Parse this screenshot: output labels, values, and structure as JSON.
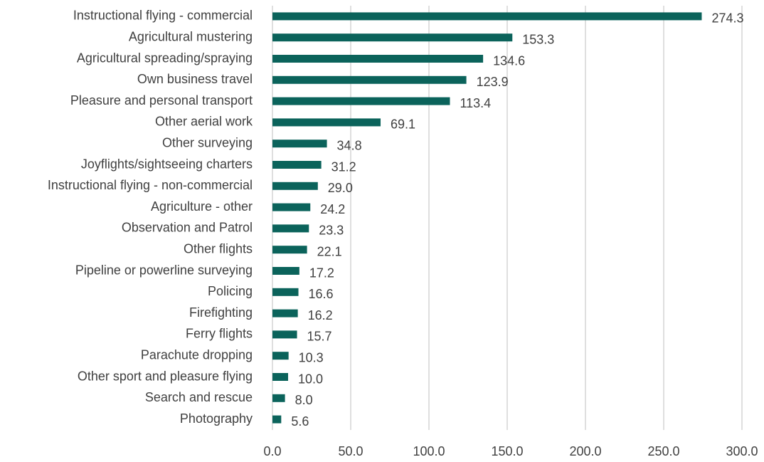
{
  "chart_data": {
    "type": "bar",
    "orientation": "horizontal",
    "color": "#0b635b",
    "grid": true,
    "categories": [
      "Instructional flying - commercial",
      "Agricultural mustering",
      "Agricultural spreading/spraying",
      "Own business travel",
      "Pleasure and personal transport",
      "Other aerial work",
      "Other surveying",
      "Joyflights/sightseeing charters",
      "Instructional flying - non-commercial",
      "Agriculture - other",
      "Observation and Patrol",
      "Other flights",
      "Pipeline or powerline surveying",
      "Policing",
      "Firefighting",
      "Ferry flights",
      "Parachute dropping",
      "Other sport and pleasure flying",
      "Search and rescue",
      "Photography"
    ],
    "values": [
      274.3,
      153.3,
      134.6,
      123.9,
      113.4,
      69.1,
      34.8,
      31.2,
      29.0,
      24.2,
      23.3,
      22.1,
      17.2,
      16.6,
      16.2,
      15.7,
      10.3,
      10.0,
      8.0,
      5.6
    ],
    "value_labels": [
      "274.3",
      "153.3",
      "134.6",
      "123.9",
      "113.4",
      "69.1",
      "34.8",
      "31.2",
      "29.0",
      "24.2",
      "23.3",
      "22.1",
      "17.2",
      "16.6",
      "16.2",
      "15.7",
      "10.3",
      "10.0",
      "8.0",
      "5.6"
    ],
    "xlim": [
      0,
      300
    ],
    "xticks": [
      {
        "value": 0,
        "label": "0.0"
      },
      {
        "value": 50,
        "label": "50.0"
      },
      {
        "value": 100,
        "label": "100.0"
      },
      {
        "value": 150,
        "label": "150.0"
      },
      {
        "value": 200,
        "label": "200.0"
      },
      {
        "value": 250,
        "label": "250.0"
      },
      {
        "value": 300,
        "label": "300.0"
      }
    ]
  }
}
